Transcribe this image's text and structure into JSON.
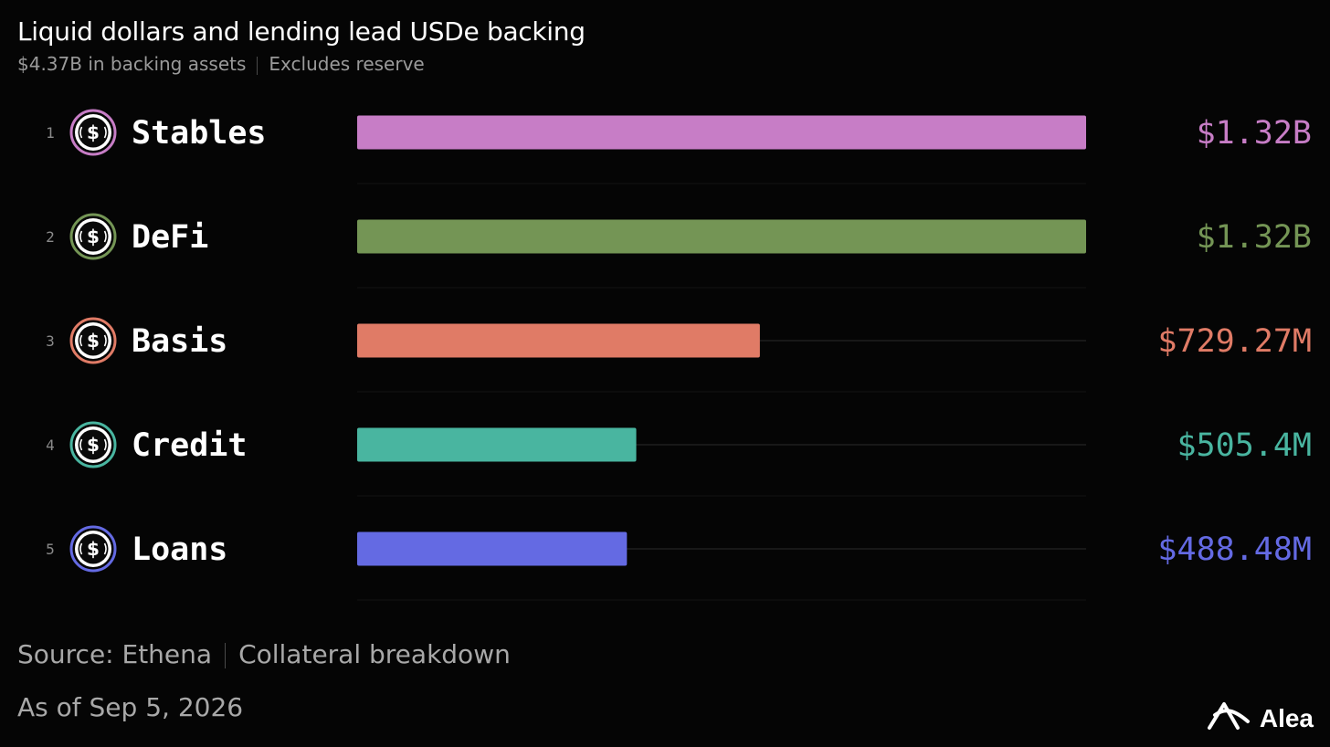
{
  "header": {
    "title": "Liquid dollars and lending lead USDe backing",
    "subtitle_left": "$4.37B in backing assets",
    "subtitle_right": "Excludes reserve"
  },
  "footer": {
    "source": "Source: Ethena",
    "source_detail": "Collateral breakdown",
    "as_of": "As of Sep 5, 2026",
    "brand": "Alea"
  },
  "icons": {
    "row_icon": "dollar-coin-icon",
    "brand_logo": "alea-logo-icon"
  },
  "colors": {
    "background": "#050505",
    "track": "#2a2a2a",
    "label": "#ffffff",
    "rank": "#8a8a8a"
  },
  "chart_data": {
    "type": "bar",
    "orientation": "horizontal",
    "categories": [
      "Stables",
      "DeFi",
      "Basis",
      "Credit",
      "Loans"
    ],
    "ranks": [
      "1",
      "2",
      "3",
      "4",
      "5"
    ],
    "values": [
      1320,
      1320,
      729.27,
      505.4,
      488.48
    ],
    "unit": "M USD",
    "value_labels": [
      "$1.32B",
      "$1.32B",
      "$729.27M",
      "$505.4M",
      "$488.48M"
    ],
    "colors": [
      "#c77dc6",
      "#749555",
      "#e07b66",
      "#49b5a0",
      "#646ae3"
    ],
    "xlim": [
      0,
      1320
    ],
    "grid": false,
    "legend": "none"
  }
}
